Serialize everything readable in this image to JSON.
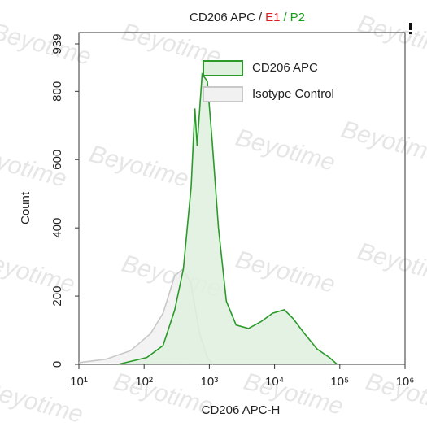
{
  "chart_data": {
    "type": "line",
    "title_parts": [
      {
        "text": "CD206 APC",
        "color": "#222222"
      },
      {
        "text": "/",
        "color": "#222222"
      },
      {
        "text": "E1",
        "color": "#e02020"
      },
      {
        "text": "/",
        "color": "#1a9a1a"
      },
      {
        "text": "P2",
        "color": "#1a9a1a"
      }
    ],
    "watermark": "Beyotime",
    "x_label": "CD206 APC-H",
    "y_label": "Count",
    "x_log": true,
    "xlim": [
      10,
      1000000
    ],
    "xticks": [
      {
        "value": 10,
        "label": "10¹"
      },
      {
        "value": 100,
        "label": "10²"
      },
      {
        "value": 1000,
        "label": "10³"
      },
      {
        "value": 10000,
        "label": "10⁴"
      },
      {
        "value": 100000,
        "label": "10⁵"
      },
      {
        "value": 1000000,
        "label": "10⁶"
      }
    ],
    "ylim": [
      0,
      939
    ],
    "yticks": [
      0,
      200,
      400,
      600,
      800,
      939
    ],
    "series": [
      {
        "name": "Isotype Control",
        "color": "#c8c8c8",
        "fill": "#f1f1f1",
        "x": [
          10,
          26,
          62,
          126,
          195,
          295,
          400,
          525,
          708,
          933,
          1150
        ],
        "values": [
          5,
          15,
          40,
          90,
          150,
          260,
          280,
          235,
          90,
          20,
          0
        ]
      },
      {
        "name": "CD206 APC",
        "color": "#2a9a2a",
        "fill": "#dff0df",
        "x": [
          40,
          110,
          195,
          295,
          400,
          525,
          600,
          650,
          775,
          930,
          1100,
          1380,
          1820,
          2570,
          3980,
          6170,
          9330,
          14100,
          19100,
          28800,
          44700,
          69200,
          91200
        ],
        "values": [
          0,
          20,
          55,
          160,
          280,
          520,
          750,
          640,
          850,
          830,
          660,
          400,
          185,
          115,
          105,
          125,
          150,
          160,
          135,
          90,
          45,
          20,
          0
        ]
      }
    ]
  }
}
